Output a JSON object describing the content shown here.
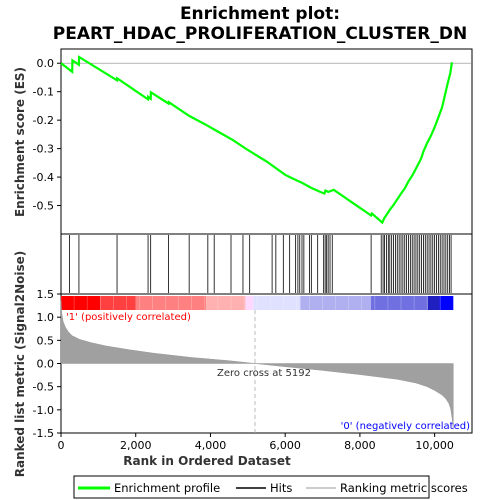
{
  "chart_data": {
    "type": "line",
    "title_line1": "Enrichment plot:",
    "title_line2": "PEART_HDAC_PROLIFERATION_CLUSTER_DN",
    "xlabel": "Rank in Ordered Dataset",
    "ylabel_top": "Enrichment score (ES)",
    "ylabel_bottom": "Ranked list metric (Signal2Noise)",
    "xlim": [
      0,
      11000
    ],
    "x_ticks": [
      0,
      2000,
      4000,
      6000,
      8000,
      10000
    ],
    "x_tick_labels": [
      "0",
      "2,000",
      "4,000",
      "6,000",
      "8,000",
      "10,000"
    ],
    "es_ylim": [
      -0.6,
      0.05
    ],
    "es_ticks": [
      0.0,
      -0.1,
      -0.2,
      -0.3,
      -0.4,
      -0.5
    ],
    "es_tick_labels": [
      "0.0",
      "-0.1",
      "-0.2",
      "-0.3",
      "-0.4",
      "-0.5"
    ],
    "metric_ylim": [
      -1.5,
      1.5
    ],
    "metric_ticks": [
      1.5,
      1.0,
      0.5,
      0.0,
      -0.5,
      -1.0,
      -1.5
    ],
    "metric_tick_labels": [
      "1.5",
      "1.0",
      "0.5",
      "0.0",
      "-0.5",
      "-1.0",
      "-1.5"
    ],
    "n_genes": 10500,
    "zero_cross_rank": 5192,
    "zero_cross_label": "Zero cross at 5192",
    "positive_label": "'1' (positively correlated)",
    "negative_label": "'0' (negatively correlated)",
    "enrichment_profile": {
      "x": [
        0,
        300,
        305,
        480,
        485,
        1500,
        1505,
        2330,
        2335,
        2400,
        2405,
        2880,
        2885,
        3430,
        3930,
        4100,
        4600,
        5000,
        5500,
        6000,
        6200,
        6450,
        6700,
        6900,
        7050,
        7080,
        7150,
        7300,
        7800,
        8300,
        8320,
        8600,
        8650,
        8700,
        8800,
        8900,
        9000,
        9100,
        9200,
        9300,
        9400,
        9500,
        9600,
        9650,
        9700,
        9800,
        9900,
        10000,
        10100,
        10200,
        10280,
        10350,
        10420,
        10460,
        10480
      ],
      "y": [
        0.0,
        -0.03,
        0.01,
        -0.005,
        0.022,
        -0.06,
        -0.053,
        -0.127,
        -0.118,
        -0.125,
        -0.102,
        -0.142,
        -0.137,
        -0.185,
        -0.22,
        -0.233,
        -0.27,
        -0.305,
        -0.345,
        -0.392,
        -0.405,
        -0.42,
        -0.438,
        -0.45,
        -0.458,
        -0.447,
        -0.452,
        -0.445,
        -0.49,
        -0.535,
        -0.528,
        -0.56,
        -0.545,
        -0.535,
        -0.515,
        -0.498,
        -0.478,
        -0.458,
        -0.44,
        -0.415,
        -0.395,
        -0.37,
        -0.345,
        -0.33,
        -0.31,
        -0.28,
        -0.255,
        -0.225,
        -0.19,
        -0.155,
        -0.11,
        -0.07,
        -0.035,
        0.0,
        0.0
      ]
    },
    "hit_ranks": [
      230,
      480,
      1500,
      2330,
      2400,
      2880,
      3430,
      3930,
      4100,
      4550,
      4870,
      5050,
      5650,
      5750,
      5950,
      6120,
      6280,
      6340,
      6390,
      6450,
      6500,
      6650,
      6700,
      6870,
      7030,
      7070,
      7110,
      7150,
      7200,
      7260,
      8300,
      8570,
      8620,
      8660,
      8710,
      8760,
      8800,
      8850,
      8900,
      8950,
      9000,
      9050,
      9100,
      9150,
      9200,
      9250,
      9300,
      9350,
      9400,
      9450,
      9500,
      9550,
      9600,
      9650,
      9700,
      9750,
      9800,
      9850,
      9900,
      9950,
      10000,
      10050,
      10100,
      10150,
      10200,
      10250,
      10300,
      10350,
      10400,
      10440
    ],
    "metric_profile": {
      "rank": [
        0,
        20,
        60,
        120,
        200,
        300,
        500,
        800,
        1200,
        1800,
        2500,
        3500,
        4500,
        5192,
        6000,
        7000,
        8000,
        8600,
        9000,
        9500,
        9800,
        10000,
        10200,
        10300,
        10380,
        10430,
        10470,
        10500
      ],
      "value": [
        1.35,
        1.1,
        0.9,
        0.78,
        0.68,
        0.6,
        0.52,
        0.45,
        0.38,
        0.3,
        0.22,
        0.13,
        0.06,
        0.0,
        -0.07,
        -0.15,
        -0.24,
        -0.3,
        -0.34,
        -0.42,
        -0.5,
        -0.58,
        -0.68,
        -0.76,
        -0.86,
        -0.98,
        -1.2,
        -1.42
      ]
    },
    "band_colors": [
      "#ff0000",
      "#ff4040",
      "#ff8080",
      "#ffb0b0",
      "#ffd8ff",
      "#e0e0ff",
      "#b0b0f0",
      "#7070e0",
      "#2020c0",
      "#0000ff"
    ],
    "colors": {
      "profile": "#00ff00",
      "hits": "#000000",
      "metric": "#a0a0a0",
      "positive_text": "#ff0000",
      "negative_text": "#0000ff"
    },
    "legend": [
      "Enrichment profile",
      "Hits",
      "Ranking metric scores"
    ],
    "grid": false
  }
}
